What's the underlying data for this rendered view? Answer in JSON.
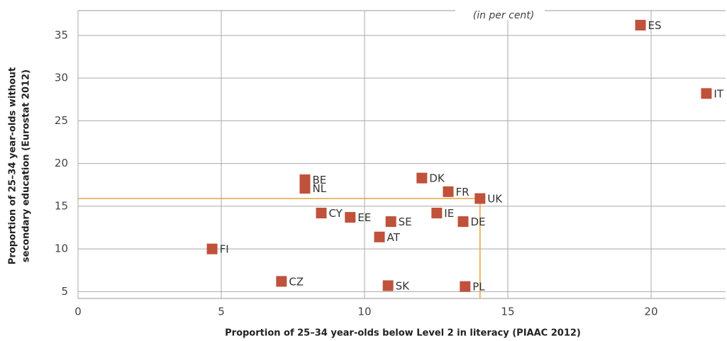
{
  "chart_data": {
    "type": "scatter",
    "annotation": "(in per cent)",
    "x_label": "Proportion of 25–34 year-olds below Level 2 in literacy (PIAAC 2012)",
    "y_label": [
      "Proportion of 25–34 year-olds without",
      "secondary education (Eurostat 2012)"
    ],
    "labels": [
      "ES",
      "IT",
      "BE",
      "NL",
      "DK",
      "FR",
      "UK",
      "CY",
      "EE",
      "SE",
      "IE",
      "DE",
      "AT",
      "FI",
      "CZ",
      "SK",
      "PL"
    ],
    "x": [
      19.63,
      21.93,
      7.92,
      7.92,
      12.0,
      12.92,
      14.03,
      8.49,
      9.5,
      10.92,
      12.52,
      13.44,
      10.52,
      4.68,
      7.1,
      10.82,
      13.51
    ],
    "values": [
      36.2,
      28.2,
      18.1,
      17.1,
      18.3,
      16.7,
      15.9,
      14.2,
      13.7,
      13.2,
      14.2,
      13.2,
      11.4,
      10.0,
      6.2,
      5.7,
      5.6
    ],
    "color": "#c0513b",
    "reference_point_index": 6,
    "reference_color": "#e8a33d",
    "xlim": [
      0,
      22.6
    ],
    "ylim": [
      4.2,
      37.9
    ],
    "xticks": [
      0,
      5,
      10,
      15,
      20
    ],
    "yticks": [
      5,
      10,
      15,
      20,
      25,
      30,
      35
    ],
    "grid": true
  }
}
